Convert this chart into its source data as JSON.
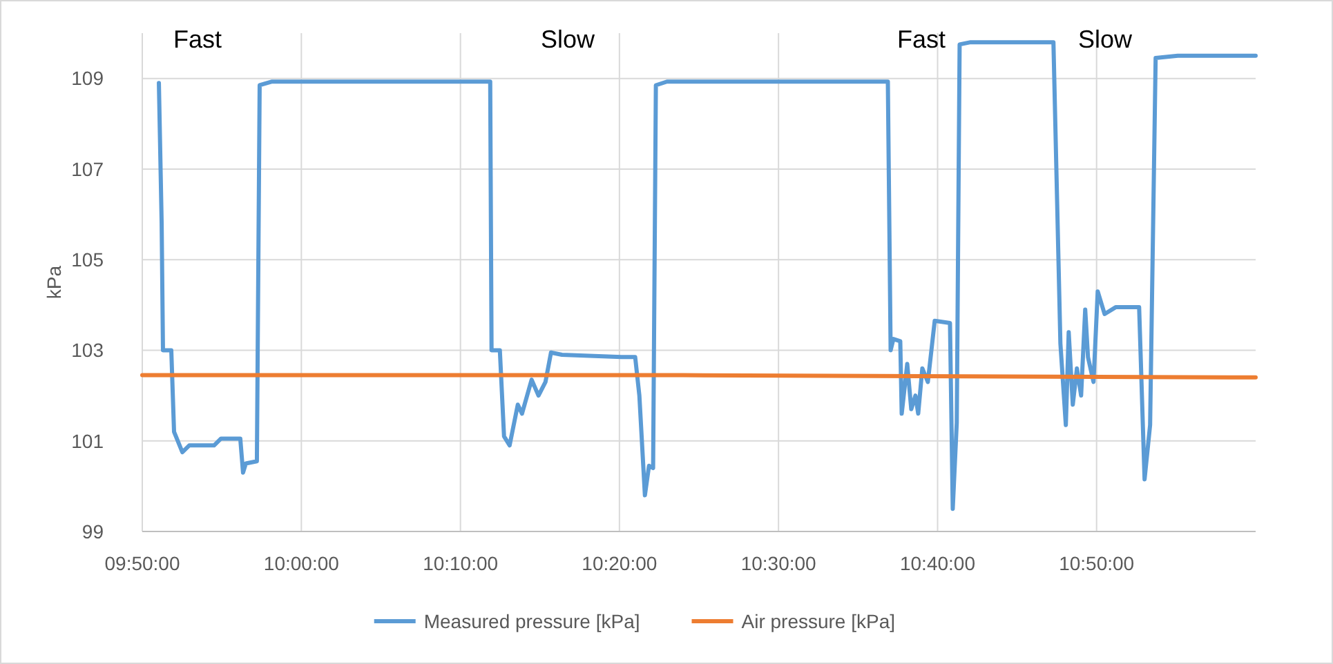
{
  "chart_data": {
    "type": "line",
    "ylabel": "kPa",
    "xlim": [
      9.8333,
      11.0
    ],
    "xticks": [
      {
        "value": 9.8333,
        "label": "09:50:00"
      },
      {
        "value": 10,
        "label": "10:00:00"
      },
      {
        "value": 10.1667,
        "label": "10:10:00"
      },
      {
        "value": 10.3333,
        "label": "10:20:00"
      },
      {
        "value": 10.5,
        "label": "10:30:00"
      },
      {
        "value": 10.6667,
        "label": "10:40:00"
      },
      {
        "value": 10.8333,
        "label": "10:50:00"
      }
    ],
    "ylim": [
      99,
      110
    ],
    "yticks": [
      99,
      101,
      103,
      105,
      107,
      109
    ],
    "grid": true,
    "legend": "bottom",
    "line_style": "solid",
    "marker": "none",
    "series": [
      {
        "name": "Measured pressure [kPa]",
        "color": "#5b9bd5",
        "x": [
          9.8507,
          9.8536,
          9.855,
          9.8637,
          9.8666,
          9.8753,
          9.8825,
          9.9085,
          9.9158,
          9.936,
          9.9389,
          9.9418,
          9.9534,
          9.9563,
          9.9693,
          10.1979,
          10.1993,
          10.208,
          10.2124,
          10.2182,
          10.2268,
          10.2312,
          10.2413,
          10.2485,
          10.2558,
          10.2616,
          10.2731,
          10.3355,
          10.3498,
          10.3542,
          10.36,
          10.3643,
          10.3686,
          10.3715,
          10.3831,
          10.6146,
          10.6175,
          10.6204,
          10.6276,
          10.6291,
          10.6349,
          10.6391,
          10.6435,
          10.6464,
          10.6507,
          10.6565,
          10.6637,
          10.6797,
          10.6826,
          10.6868,
          10.6898,
          10.7013,
          10.7881,
          10.7954,
          10.8011,
          10.8041,
          10.8084,
          10.8127,
          10.8171,
          10.8214,
          10.8243,
          10.8301,
          10.8345,
          10.8417,
          10.8533,
          10.8779,
          10.8836,
          10.8894,
          10.8952,
          10.9184,
          11.0
        ],
        "values": [
          108.9,
          105.8,
          103.0,
          103.0,
          101.2,
          100.75,
          100.9,
          100.9,
          101.05,
          101.05,
          100.3,
          100.5,
          100.55,
          108.85,
          108.93,
          108.93,
          103.0,
          103.0,
          101.1,
          100.9,
          101.8,
          101.6,
          102.35,
          102.0,
          102.3,
          102.95,
          102.9,
          102.85,
          102.85,
          102.0,
          99.8,
          100.45,
          100.4,
          108.85,
          108.93,
          108.93,
          103.0,
          103.25,
          103.2,
          101.6,
          102.7,
          101.7,
          102.0,
          101.6,
          102.6,
          102.3,
          103.65,
          103.6,
          99.5,
          101.4,
          109.75,
          109.8,
          109.8,
          103.15,
          101.35,
          103.4,
          101.8,
          102.6,
          102.0,
          103.9,
          102.85,
          102.3,
          104.3,
          103.8,
          103.95,
          103.95,
          100.15,
          101.35,
          109.45,
          109.5,
          109.5
        ]
      },
      {
        "name": "Air pressure [kPa]",
        "color": "#ed7d31",
        "x": [
          9.8333,
          10.4,
          11.0
        ],
        "values": [
          102.45,
          102.45,
          102.4
        ]
      }
    ],
    "annotations": [
      "Fast",
      "Slow",
      "Fast",
      "Slow"
    ]
  }
}
